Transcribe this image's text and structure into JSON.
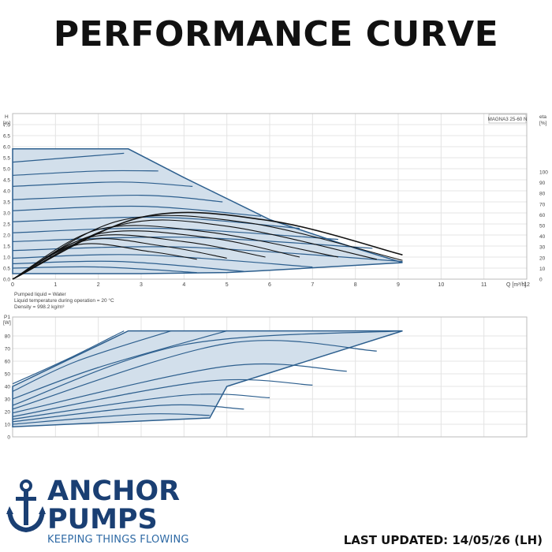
{
  "page": {
    "title": "PERFORMANCE CURVE",
    "last_updated": "LAST UPDATED: 14/05/26 (LH)"
  },
  "brand": {
    "line1": "ANCHOR",
    "line2": "PUMPS",
    "tagline": "KEEPING THINGS FLOWING",
    "color": "#1a3f73",
    "tagline_color": "#2f6aa5"
  },
  "colors": {
    "envelope_fill": "#d2dfeb",
    "curve_blue": "#2d5f8e",
    "efficiency": "#111111",
    "grid": "#e4e4e4"
  },
  "chart_data": [
    {
      "type": "line",
      "model_label": "MAGNA3 25-60 N",
      "ylabel": "H",
      "yunit": "[m]",
      "y2label": "eta",
      "y2unit": "[%]",
      "xlabel": "Q [m³/h]",
      "xlim": [
        0,
        12
      ],
      "ylim": [
        0,
        7.5
      ],
      "y2lim": [
        0,
        100
      ],
      "xticks": [
        "0",
        "1",
        "2",
        "3",
        "4",
        "5",
        "6",
        "7",
        "8",
        "9",
        "10",
        "11",
        "12"
      ],
      "yticks": [
        "0.0",
        "0.5",
        "1.0",
        "1.5",
        "2.0",
        "2.5",
        "3.0",
        "3.5",
        "4.0",
        "4.5",
        "5.0",
        "5.5",
        "6.0",
        "6.5",
        "7.0"
      ],
      "y2ticks": [
        "0",
        "10",
        "20",
        "30",
        "40",
        "50",
        "60",
        "70",
        "80",
        "90",
        "100"
      ],
      "grid": true,
      "envelope": {
        "x": [
          0,
          0,
          2.7,
          4,
          6,
          8,
          9.1,
          9.1,
          6,
          5,
          3,
          0
        ],
        "y": [
          0.25,
          5.9,
          5.9,
          4.6,
          2.7,
          1.4,
          0.75,
          0.75,
          0.4,
          0.3,
          0.25,
          0.25
        ]
      },
      "speed_curves": [
        {
          "x": [
            0,
            2.6
          ],
          "y": [
            5.3,
            5.7
          ]
        },
        {
          "x": [
            0,
            2,
            3.4
          ],
          "y": [
            4.7,
            4.9,
            4.9
          ]
        },
        {
          "x": [
            0,
            2.5,
            4.2
          ],
          "y": [
            4.2,
            4.4,
            4.2
          ]
        },
        {
          "x": [
            0,
            3,
            4.9
          ],
          "y": [
            3.6,
            3.8,
            3.5
          ]
        },
        {
          "x": [
            0,
            3,
            5.8
          ],
          "y": [
            3.1,
            3.3,
            2.85
          ]
        },
        {
          "x": [
            0,
            3.5,
            6.7
          ],
          "y": [
            2.6,
            2.8,
            2.3
          ]
        },
        {
          "x": [
            0,
            3.5,
            7.6
          ],
          "y": [
            2.1,
            2.3,
            1.8
          ]
        },
        {
          "x": [
            0,
            4,
            8.4
          ],
          "y": [
            1.7,
            1.9,
            1.4
          ]
        },
        {
          "x": [
            0,
            4,
            9.1
          ],
          "y": [
            1.3,
            1.45,
            0.8
          ]
        },
        {
          "x": [
            0,
            3,
            7
          ],
          "y": [
            0.95,
            1.1,
            0.55
          ]
        },
        {
          "x": [
            0,
            2.5,
            5.4
          ],
          "y": [
            0.7,
            0.8,
            0.35
          ]
        },
        {
          "x": [
            0,
            2,
            4.3
          ],
          "y": [
            0.5,
            0.55,
            0.3
          ]
        }
      ],
      "efficiency_curves": [
        {
          "x": [
            0,
            3,
            6,
            9.1
          ],
          "y": [
            0,
            2.8,
            2.65,
            1.1
          ]
        },
        {
          "x": [
            0,
            2.5,
            5.5,
            9.1
          ],
          "y": [
            0,
            2.65,
            2.55,
            0.85
          ]
        },
        {
          "x": [
            0,
            2.5,
            5,
            8.5
          ],
          "y": [
            0,
            2.45,
            2.4,
            0.9
          ]
        },
        {
          "x": [
            0,
            2,
            4.5,
            7.6
          ],
          "y": [
            0,
            2.25,
            2.15,
            1.0
          ]
        },
        {
          "x": [
            0,
            2,
            4.5,
            6.7
          ],
          "y": [
            0,
            2.05,
            1.9,
            1.0
          ]
        },
        {
          "x": [
            0,
            1.8,
            4,
            5.9
          ],
          "y": [
            0,
            1.9,
            1.7,
            1.0
          ]
        },
        {
          "x": [
            0,
            1.7,
            3.5,
            5
          ],
          "y": [
            0,
            1.75,
            1.5,
            0.95
          ]
        },
        {
          "x": [
            0,
            1.5,
            3.2,
            4.3
          ],
          "y": [
            0,
            1.55,
            1.25,
            0.9
          ]
        }
      ]
    },
    {
      "type": "line",
      "notes": [
        "Pumped liquid = Water",
        "Liquid temperature during operation = 20 °C",
        "Density = 998.2 kg/m³"
      ],
      "ylabel": "P1",
      "yunit": "[W]",
      "xlim": [
        0,
        12
      ],
      "ylim": [
        0,
        95
      ],
      "yticks": [
        "0",
        "10",
        "20",
        "30",
        "40",
        "50",
        "60",
        "70",
        "80"
      ],
      "grid": true,
      "envelope": {
        "x": [
          0,
          2.7,
          9.1,
          5,
          4.6,
          0
        ],
        "y": [
          40,
          84,
          84,
          40,
          15,
          8
        ]
      },
      "power_curves": [
        {
          "x": [
            0,
            1.3,
            2.6
          ],
          "y": [
            42,
            62,
            84
          ]
        },
        {
          "x": [
            0,
            1.5,
            3.7
          ],
          "y": [
            36,
            60,
            84
          ]
        },
        {
          "x": [
            0,
            2,
            5
          ],
          "y": [
            30,
            55,
            84
          ]
        },
        {
          "x": [
            0,
            4,
            9.1
          ],
          "y": [
            25,
            73,
            84
          ]
        },
        {
          "x": [
            0,
            5,
            8.5
          ],
          "y": [
            22,
            74,
            68
          ]
        },
        {
          "x": [
            0,
            5,
            7.8
          ],
          "y": [
            19,
            56,
            52
          ]
        },
        {
          "x": [
            0,
            4.5,
            7
          ],
          "y": [
            16,
            44,
            41
          ]
        },
        {
          "x": [
            0,
            4,
            6
          ],
          "y": [
            14,
            33,
            31
          ]
        },
        {
          "x": [
            0,
            3.5,
            5.4
          ],
          "y": [
            12,
            25,
            22
          ]
        },
        {
          "x": [
            0,
            3,
            4.6
          ],
          "y": [
            10,
            18,
            17
          ]
        }
      ]
    }
  ]
}
